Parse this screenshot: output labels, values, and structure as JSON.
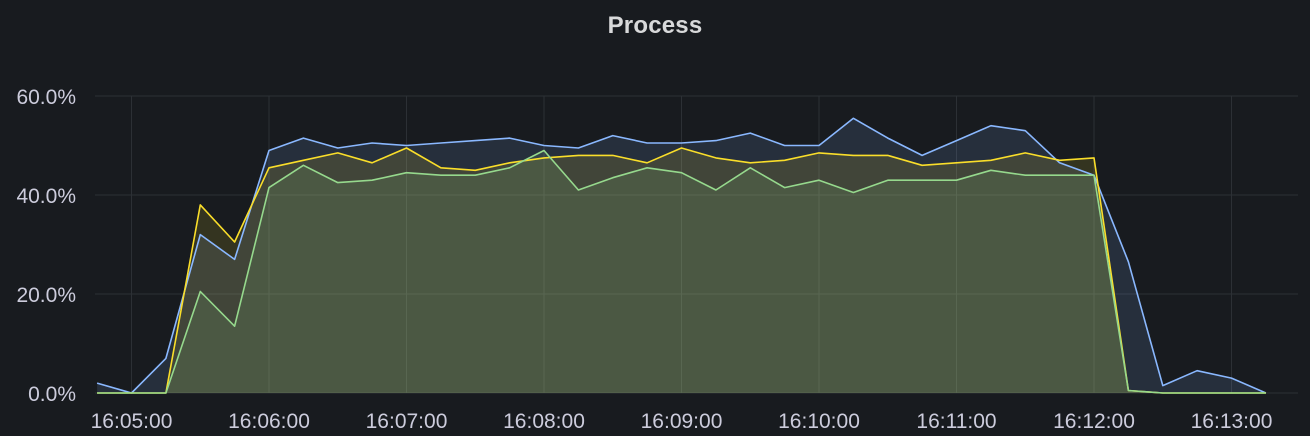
{
  "panel": {
    "title": "Process"
  },
  "chart_data": {
    "type": "area",
    "title": "Process",
    "xlabel": "",
    "ylabel": "",
    "ylim": [
      0,
      60
    ],
    "grid": true,
    "legend": "none",
    "y_unit": "%",
    "y_ticks": [
      {
        "value": 0,
        "label": "0.0%"
      },
      {
        "value": 20,
        "label": "20.0%"
      },
      {
        "value": 40,
        "label": "40.0%"
      },
      {
        "value": 60,
        "label": "60.0%"
      }
    ],
    "x_ticks": [
      {
        "value": "16:05:00",
        "label": "16:05:00"
      },
      {
        "value": "16:06:00",
        "label": "16:06:00"
      },
      {
        "value": "16:07:00",
        "label": "16:07:00"
      },
      {
        "value": "16:08:00",
        "label": "16:08:00"
      },
      {
        "value": "16:09:00",
        "label": "16:09:00"
      },
      {
        "value": "16:10:00",
        "label": "16:10:00"
      },
      {
        "value": "16:11:00",
        "label": "16:11:00"
      },
      {
        "value": "16:12:00",
        "label": "16:12:00"
      },
      {
        "value": "16:13:00",
        "label": "16:13:00"
      }
    ],
    "x": [
      "16:04:45",
      "16:05:00",
      "16:05:15",
      "16:05:30",
      "16:05:45",
      "16:06:00",
      "16:06:15",
      "16:06:30",
      "16:06:45",
      "16:07:00",
      "16:07:15",
      "16:07:30",
      "16:07:45",
      "16:08:00",
      "16:08:15",
      "16:08:30",
      "16:08:45",
      "16:09:00",
      "16:09:15",
      "16:09:30",
      "16:09:45",
      "16:10:00",
      "16:10:15",
      "16:10:30",
      "16:10:45",
      "16:11:00",
      "16:11:15",
      "16:11:30",
      "16:11:45",
      "16:12:00",
      "16:12:15",
      "16:12:30",
      "16:12:45",
      "16:13:00",
      "16:13:15"
    ],
    "series": [
      {
        "color": "#8ab8ff",
        "values": [
          2.0,
          0.0,
          7.0,
          32.0,
          27.0,
          49.0,
          51.5,
          49.5,
          50.5,
          50.0,
          50.5,
          51.0,
          51.5,
          50.0,
          49.5,
          52.0,
          50.5,
          50.5,
          51.0,
          52.5,
          50.0,
          50.0,
          55.5,
          51.5,
          48.0,
          51.0,
          54.0,
          53.0,
          46.5,
          44.0,
          26.5,
          1.5,
          4.5,
          3.0,
          0.0
        ]
      },
      {
        "color": "#fade2a",
        "values": [
          0.0,
          0.0,
          0.0,
          38.0,
          30.5,
          45.5,
          47.0,
          48.5,
          46.5,
          49.5,
          45.5,
          45.0,
          46.5,
          47.5,
          48.0,
          48.0,
          46.5,
          49.5,
          47.5,
          46.5,
          47.0,
          48.5,
          48.0,
          48.0,
          46.0,
          46.5,
          47.0,
          48.5,
          47.0,
          47.5,
          0.5,
          0.0,
          0.0,
          0.0,
          0.0
        ]
      },
      {
        "color": "#96d98d",
        "values": [
          0.0,
          0.0,
          0.0,
          20.5,
          13.5,
          41.5,
          46.0,
          42.5,
          43.0,
          44.5,
          44.0,
          44.0,
          45.5,
          49.0,
          41.0,
          43.5,
          45.5,
          44.5,
          41.0,
          45.5,
          41.5,
          43.0,
          40.5,
          43.0,
          43.0,
          43.0,
          45.0,
          44.0,
          44.0,
          44.0,
          0.5,
          0.0,
          0.0,
          0.0,
          0.0
        ]
      }
    ]
  }
}
